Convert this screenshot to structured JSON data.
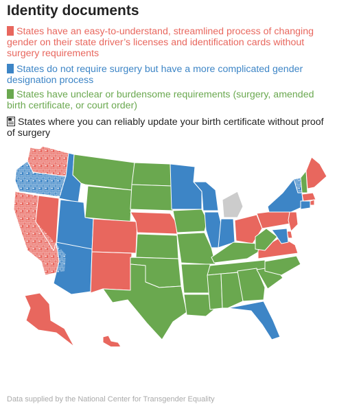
{
  "title": "Identity documents",
  "legend": {
    "easy": "States have an easy-to-understand, streamlined process of changing gender on their state driver’s licenses and identification cards without surgery requirements",
    "complicated": "States do not require surgery but have a more complicated gender designation process",
    "burdensome": "States have unclear or burdensome requirements (surgery, amended birth certificate, or court order)",
    "birth_certificate": "States where you can reliably update your birth certificate without proof of surgery"
  },
  "colors": {
    "easy": "#e8675e",
    "complicated": "#3d85c6",
    "burdensome": "#6aa84f",
    "no_data": "#cccccc"
  },
  "states": [
    {
      "code": "WA",
      "category": "easy",
      "birth_certificate": true
    },
    {
      "code": "OR",
      "category": "complicated",
      "birth_certificate": true
    },
    {
      "code": "CA",
      "category": "easy",
      "birth_certificate": true
    },
    {
      "code": "NV",
      "category": "easy",
      "birth_certificate": false
    },
    {
      "code": "ID",
      "category": "complicated",
      "birth_certificate": false
    },
    {
      "code": "MT",
      "category": "burdensome",
      "birth_certificate": false
    },
    {
      "code": "WY",
      "category": "burdensome",
      "birth_certificate": false
    },
    {
      "code": "UT",
      "category": "complicated",
      "birth_certificate": false
    },
    {
      "code": "AZ",
      "category": "complicated",
      "birth_certificate": false
    },
    {
      "code": "CO",
      "category": "easy",
      "birth_certificate": false
    },
    {
      "code": "NM",
      "category": "easy",
      "birth_certificate": false
    },
    {
      "code": "ND",
      "category": "burdensome",
      "birth_certificate": false
    },
    {
      "code": "SD",
      "category": "burdensome",
      "birth_certificate": false
    },
    {
      "code": "NE",
      "category": "easy",
      "birth_certificate": false
    },
    {
      "code": "KS",
      "category": "burdensome",
      "birth_certificate": false
    },
    {
      "code": "OK",
      "category": "burdensome",
      "birth_certificate": false
    },
    {
      "code": "TX",
      "category": "burdensome",
      "birth_certificate": false
    },
    {
      "code": "MN",
      "category": "complicated",
      "birth_certificate": false
    },
    {
      "code": "IA",
      "category": "burdensome",
      "birth_certificate": false
    },
    {
      "code": "MO",
      "category": "burdensome",
      "birth_certificate": false
    },
    {
      "code": "AR",
      "category": "burdensome",
      "birth_certificate": false
    },
    {
      "code": "LA",
      "category": "burdensome",
      "birth_certificate": false
    },
    {
      "code": "WI",
      "category": "complicated",
      "birth_certificate": false
    },
    {
      "code": "IL",
      "category": "complicated",
      "birth_certificate": false
    },
    {
      "code": "MI",
      "category": "no_data",
      "birth_certificate": false
    },
    {
      "code": "IN",
      "category": "complicated",
      "birth_certificate": false
    },
    {
      "code": "OH",
      "category": "easy",
      "birth_certificate": false
    },
    {
      "code": "KY",
      "category": "burdensome",
      "birth_certificate": false
    },
    {
      "code": "TN",
      "category": "burdensome",
      "birth_certificate": false
    },
    {
      "code": "MS",
      "category": "burdensome",
      "birth_certificate": false
    },
    {
      "code": "AL",
      "category": "burdensome",
      "birth_certificate": false
    },
    {
      "code": "GA",
      "category": "burdensome",
      "birth_certificate": false
    },
    {
      "code": "FL",
      "category": "complicated",
      "birth_certificate": false
    },
    {
      "code": "SC",
      "category": "burdensome",
      "birth_certificate": false
    },
    {
      "code": "NC",
      "category": "burdensome",
      "birth_certificate": false
    },
    {
      "code": "VA",
      "category": "easy",
      "birth_certificate": false
    },
    {
      "code": "WV",
      "category": "burdensome",
      "birth_certificate": false
    },
    {
      "code": "PA",
      "category": "easy",
      "birth_certificate": false
    },
    {
      "code": "NY",
      "category": "complicated",
      "birth_certificate": false
    },
    {
      "code": "VT",
      "category": "complicated",
      "birth_certificate": true
    },
    {
      "code": "NH",
      "category": "burdensome",
      "birth_certificate": false
    },
    {
      "code": "ME",
      "category": "easy",
      "birth_certificate": false
    },
    {
      "code": "MA",
      "category": "easy",
      "birth_certificate": false
    },
    {
      "code": "RI",
      "category": "easy",
      "birth_certificate": false
    },
    {
      "code": "CT",
      "category": "complicated",
      "birth_certificate": false
    },
    {
      "code": "NJ",
      "category": "easy",
      "birth_certificate": false
    },
    {
      "code": "DE",
      "category": "easy",
      "birth_certificate": false
    },
    {
      "code": "MD",
      "category": "complicated",
      "birth_certificate": false
    },
    {
      "code": "AK",
      "category": "easy",
      "birth_certificate": false
    },
    {
      "code": "HI",
      "category": "easy",
      "birth_certificate": false
    }
  ],
  "credit": "Data supplied by the National Center for Transgender Equality"
}
